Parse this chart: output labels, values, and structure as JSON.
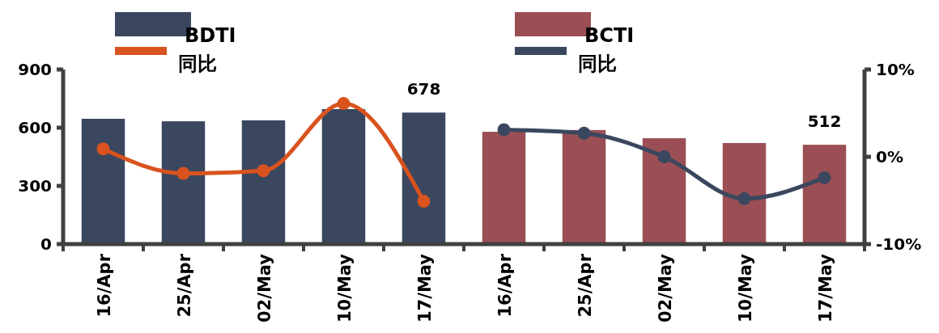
{
  "chart_data": {
    "type": "bar",
    "categories": [
      "16/Apr",
      "25/Apr",
      "02/May",
      "10/May",
      "17/May",
      "16/Apr",
      "25/Apr",
      "02/May",
      "10/May",
      "17/May"
    ],
    "series": [
      {
        "name": "BDTI",
        "color": "#3a475f",
        "values": [
          646,
          633,
          638,
          696,
          678,
          null,
          null,
          null,
          null,
          null
        ],
        "value_labels": [
          null,
          null,
          null,
          null,
          "678",
          null,
          null,
          null,
          null,
          null
        ]
      },
      {
        "name": "同比",
        "type": "line",
        "axis": "y2",
        "color": "#d9531e",
        "values": [
          0.9,
          -1.9,
          -1.6,
          6.1,
          -5.1,
          null,
          null,
          null,
          null,
          null
        ]
      },
      {
        "name": "BCTI",
        "color": "#9b4f54",
        "values": [
          null,
          null,
          null,
          null,
          null,
          579,
          588,
          546,
          521,
          512
        ],
        "value_labels": [
          null,
          null,
          null,
          null,
          null,
          null,
          null,
          null,
          null,
          "512"
        ]
      },
      {
        "name": "同比",
        "type": "line",
        "axis": "y2",
        "color": "#3a475f",
        "values": [
          null,
          null,
          null,
          null,
          null,
          3.1,
          2.7,
          0,
          -4.8,
          -2.4
        ]
      }
    ],
    "ylim": [
      0,
      900
    ],
    "yticks": [
      0,
      300,
      600,
      900
    ],
    "y2lim": [
      -10,
      10
    ],
    "y2ticks": [
      {
        "value": -10,
        "label": "-10%"
      },
      {
        "value": 0,
        "label": "0%"
      },
      {
        "value": 10,
        "label": "10%"
      }
    ],
    "marker": "circle",
    "legend": "top",
    "grid": false
  }
}
